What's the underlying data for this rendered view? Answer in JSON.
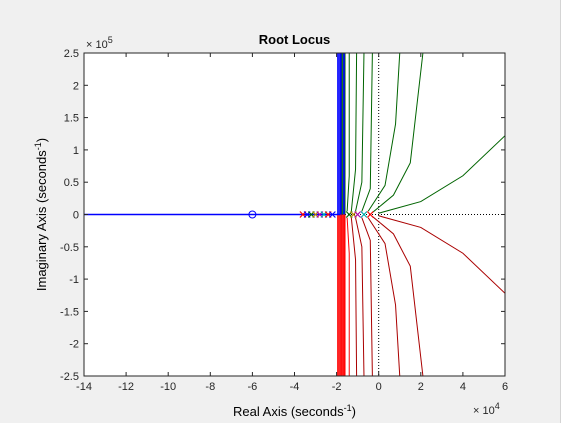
{
  "chart_data": {
    "type": "scatter",
    "title": "Root Locus",
    "xlabel": {
      "text": "Real Axis (seconds",
      "sup": "-1",
      "tail": ")"
    },
    "ylabel": {
      "text": "Imaginary Axis (seconds",
      "sup": "-1",
      "tail": ")"
    },
    "x_multiplier": {
      "base": "× 10",
      "exp": "4"
    },
    "y_multiplier": {
      "base": "× 10",
      "exp": "5"
    },
    "xlim": [
      -14,
      6
    ],
    "ylim": [
      -2.5,
      2.5
    ],
    "x_ticks": [
      "-14",
      "-12",
      "-10",
      "-8",
      "-6",
      "-4",
      "-2",
      "0",
      "2",
      "4",
      "6"
    ],
    "y_ticks": [
      "-2.5",
      "-2",
      "-1.5",
      "-1",
      "-0.5",
      "0",
      "0.5",
      "1",
      "1.5",
      "2",
      "2.5"
    ],
    "grid": false,
    "colors": {
      "blue": "#0000ff",
      "green": "#006400",
      "red": "#ff0000",
      "dark_red": "#aa0000",
      "axes_bg": "#ffffff",
      "dotted": "#000000"
    },
    "zeros": [
      {
        "real": -6,
        "imag": 0
      }
    ],
    "poles_real_axis": [
      -3.6,
      -3.4,
      -3.2,
      -3.0,
      -2.8,
      -2.6,
      -2.4,
      -2.2,
      -1.4,
      -1.2,
      -1.0,
      -0.7,
      -0.4
    ],
    "series": [
      {
        "color_key": "blue",
        "points": [
          [
            -14,
            0
          ],
          [
            -1.8,
            0
          ],
          [
            -1.8,
            2.5
          ]
        ]
      },
      {
        "color_key": "blue",
        "points": [
          [
            -1.65,
            0
          ],
          [
            -1.65,
            2.5
          ]
        ]
      },
      {
        "color_key": "red",
        "points": [
          [
            -1.8,
            0
          ],
          [
            -1.8,
            -2.5
          ]
        ]
      },
      {
        "color_key": "red",
        "points": [
          [
            -1.65,
            0
          ],
          [
            -1.65,
            -2.5
          ]
        ]
      },
      {
        "color_key": "green",
        "points": [
          [
            -1.5,
            0.05
          ],
          [
            -1.4,
            0.6
          ],
          [
            -1.4,
            2.5
          ]
        ]
      },
      {
        "color_key": "green",
        "points": [
          [
            -1.3,
            0.05
          ],
          [
            -1.1,
            0.7
          ],
          [
            -1.05,
            2.5
          ]
        ]
      },
      {
        "color_key": "green",
        "points": [
          [
            -1.1,
            0.05
          ],
          [
            -0.8,
            0.5
          ],
          [
            -0.7,
            2.5
          ]
        ]
      },
      {
        "color_key": "green",
        "points": [
          [
            -0.8,
            0.05
          ],
          [
            -0.4,
            0.4
          ],
          [
            -0.3,
            2.5
          ]
        ]
      },
      {
        "color_key": "green",
        "points": [
          [
            -0.5,
            0.05
          ],
          [
            0.3,
            0.45
          ],
          [
            0.8,
            1.4
          ],
          [
            1.0,
            2.5
          ]
        ]
      },
      {
        "color_key": "green",
        "points": [
          [
            -0.3,
            0.03
          ],
          [
            0.7,
            0.3
          ],
          [
            1.5,
            0.8
          ],
          [
            2.1,
            2.5
          ]
        ]
      },
      {
        "color_key": "green",
        "points": [
          [
            0.0,
            0.02
          ],
          [
            2.0,
            0.2
          ],
          [
            4.0,
            0.6
          ],
          [
            6.0,
            1.22
          ]
        ]
      },
      {
        "color_key": "red",
        "points": [
          [
            -1.5,
            -0.05
          ],
          [
            -1.4,
            -0.6
          ],
          [
            -1.4,
            -2.5
          ]
        ]
      },
      {
        "color_key": "dark_red",
        "points": [
          [
            -1.3,
            -0.05
          ],
          [
            -1.1,
            -0.7
          ],
          [
            -1.05,
            -2.5
          ]
        ]
      },
      {
        "color_key": "dark_red",
        "points": [
          [
            -1.1,
            -0.05
          ],
          [
            -0.8,
            -0.5
          ],
          [
            -0.7,
            -2.5
          ]
        ]
      },
      {
        "color_key": "dark_red",
        "points": [
          [
            -0.8,
            -0.05
          ],
          [
            -0.4,
            -0.4
          ],
          [
            -0.3,
            -2.5
          ]
        ]
      },
      {
        "color_key": "dark_red",
        "points": [
          [
            -0.5,
            -0.05
          ],
          [
            0.3,
            -0.45
          ],
          [
            0.8,
            -1.4
          ],
          [
            1.0,
            -2.5
          ]
        ]
      },
      {
        "color_key": "dark_red",
        "points": [
          [
            -0.3,
            -0.03
          ],
          [
            0.7,
            -0.3
          ],
          [
            1.5,
            -0.8
          ],
          [
            2.1,
            -2.5
          ]
        ]
      },
      {
        "color_key": "dark_red",
        "points": [
          [
            0.0,
            -0.02
          ],
          [
            2.0,
            -0.2
          ],
          [
            4.0,
            -0.6
          ],
          [
            6.0,
            -1.22
          ]
        ]
      }
    ],
    "asymptote_x": 0
  }
}
